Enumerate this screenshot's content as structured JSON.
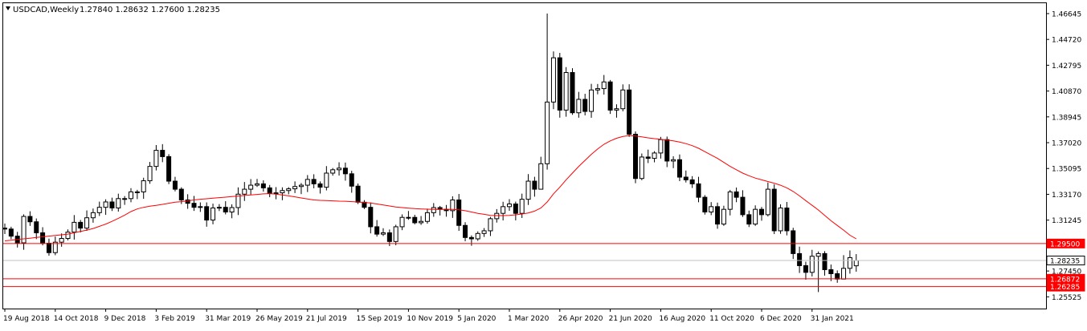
{
  "header": {
    "symbol": "USDCAD,Weekly",
    "ohlc": "1.27840 1.28632 1.27600 1.28235",
    "menu_icon": "triangle-down-icon"
  },
  "colors": {
    "background": "#ffffff",
    "frame": "#000000",
    "candle_up_fill": "#ffffff",
    "candle_down_fill": "#000000",
    "ma_line": "#ff0000",
    "level_line": "#ff0000",
    "current_line": "#c0c0c0",
    "current_badge": "#ffffff",
    "level_badge": "#ff0000"
  },
  "chart_data": {
    "type": "candlestick",
    "title": "USDCAD,Weekly",
    "ylim": [
      1.2465,
      1.4742
    ],
    "yticks": [
      "1.46645",
      "1.44720",
      "1.42795",
      "1.40870",
      "1.38945",
      "1.37020",
      "1.35095",
      "1.33170",
      "1.31245",
      "1.29500",
      "1.28235",
      "1.27450",
      "1.26872",
      "1.26285",
      "1.25525"
    ],
    "ytick_values": [
      1.46645,
      1.4472,
      1.42795,
      1.4087,
      1.38945,
      1.3702,
      1.35095,
      1.3317,
      1.31245,
      1.295,
      1.28235,
      1.2745,
      1.26872,
      1.26285,
      1.25525
    ],
    "xtick_labels": [
      "19 Aug 2018",
      "14 Oct 2018",
      "9 Dec 2018",
      "3 Feb 2019",
      "31 Mar 2019",
      "26 May 2019",
      "21 Jul 2019",
      "15 Sep 2019",
      "10 Nov 2019",
      "5 Jan 2020",
      "1 Mar 2020",
      "26 Apr 2020",
      "21 Jun 2020",
      "16 Aug 2020",
      "11 Oct 2020",
      "6 Dec 2020",
      "31 Jan 2021"
    ],
    "xtick_index": [
      0,
      8,
      16,
      24,
      32,
      40,
      48,
      56,
      64,
      72,
      80,
      88,
      96,
      104,
      112,
      120,
      128
    ],
    "candles_close": [
      1.3058,
      1.3005,
      1.2955,
      1.3152,
      1.3112,
      1.303,
      1.2952,
      1.2882,
      1.296,
      1.2988,
      1.3035,
      1.3108,
      1.3065,
      1.3142,
      1.318,
      1.322,
      1.326,
      1.3215,
      1.3285,
      1.3285,
      1.3335,
      1.3335,
      1.3418,
      1.3525,
      1.3645,
      1.3598,
      1.3415,
      1.3355,
      1.3275,
      1.325,
      1.322,
      1.3225,
      1.3125,
      1.3215,
      1.322,
      1.3185,
      1.3218,
      1.3318,
      1.3355,
      1.3385,
      1.3395,
      1.3365,
      1.3325,
      1.3328,
      1.3345,
      1.3358,
      1.3375,
      1.3385,
      1.3428,
      1.3395,
      1.337,
      1.3475,
      1.35,
      1.3512,
      1.347,
      1.3378,
      1.3258,
      1.322,
      1.3075,
      1.302,
      1.303,
      1.2965,
      1.3075,
      1.3145,
      1.3145,
      1.3105,
      1.3115,
      1.318,
      1.3218,
      1.3205,
      1.3195,
      1.3275,
      1.3085,
      1.2995,
      1.2985,
      1.3025,
      1.3045,
      1.3135,
      1.3175,
      1.3225,
      1.3245,
      1.3175,
      1.328,
      1.3415,
      1.3355,
      1.3545,
      1.4005,
      1.4335,
      1.3945,
      1.4225,
      1.3925,
      1.4025,
      1.3935,
      1.4095,
      1.4105,
      1.4155,
      1.3945,
      1.3955,
      1.4095,
      1.3765,
      1.3435,
      1.3595,
      1.3585,
      1.3625,
      1.3725,
      1.3565,
      1.3575,
      1.3445,
      1.3425,
      1.3395,
      1.3295,
      1.3185,
      1.3225,
      1.3095,
      1.3205,
      1.3335,
      1.3295,
      1.3165,
      1.3095,
      1.3205,
      1.3165,
      1.3355,
      1.3045,
      1.3215,
      1.3045,
      1.2875,
      1.2785,
      1.2735,
      1.2855,
      1.2875,
      1.2755,
      1.2725,
      1.2685,
      1.2765,
      1.2845,
      1.28235
    ],
    "candles_open": [
      1.3065,
      1.3058,
      1.3005,
      1.2955,
      1.3152,
      1.3112,
      1.303,
      1.2952,
      1.2882,
      1.296,
      1.2988,
      1.3035,
      1.3108,
      1.3065,
      1.3142,
      1.318,
      1.322,
      1.326,
      1.3215,
      1.3285,
      1.3285,
      1.3335,
      1.3335,
      1.3418,
      1.3525,
      1.3645,
      1.3598,
      1.3415,
      1.3355,
      1.3275,
      1.325,
      1.322,
      1.3225,
      1.3125,
      1.3215,
      1.322,
      1.3185,
      1.3218,
      1.3318,
      1.3355,
      1.3385,
      1.3395,
      1.3365,
      1.3325,
      1.3328,
      1.3345,
      1.3358,
      1.3375,
      1.3385,
      1.3428,
      1.3395,
      1.337,
      1.3475,
      1.35,
      1.3512,
      1.347,
      1.3378,
      1.3258,
      1.322,
      1.3075,
      1.302,
      1.303,
      1.2965,
      1.3075,
      1.3145,
      1.3145,
      1.3105,
      1.3115,
      1.318,
      1.3218,
      1.3205,
      1.3195,
      1.3275,
      1.3085,
      1.2995,
      1.2985,
      1.3025,
      1.3045,
      1.3135,
      1.3175,
      1.3225,
      1.3245,
      1.3175,
      1.328,
      1.3415,
      1.3355,
      1.3545,
      1.4005,
      1.4335,
      1.3945,
      1.4225,
      1.3925,
      1.4025,
      1.3935,
      1.4095,
      1.4105,
      1.4155,
      1.3945,
      1.3955,
      1.4095,
      1.3765,
      1.3435,
      1.3595,
      1.3585,
      1.3625,
      1.3725,
      1.3565,
      1.3575,
      1.3445,
      1.3425,
      1.3395,
      1.3295,
      1.3185,
      1.3225,
      1.3095,
      1.3205,
      1.3335,
      1.3295,
      1.3165,
      1.3095,
      1.3205,
      1.3165,
      1.3355,
      1.3045,
      1.3215,
      1.3045,
      1.2875,
      1.2785,
      1.2735,
      1.2855,
      1.2875,
      1.2755,
      1.2725,
      1.2685,
      1.2765,
      1.2784
    ],
    "ma_values": [
      1.297,
      1.2975,
      1.298,
      1.2985,
      1.299,
      1.2995,
      1.3,
      1.3005,
      1.301,
      1.3015,
      1.302,
      1.303,
      1.304,
      1.305,
      1.3062,
      1.3078,
      1.3095,
      1.3115,
      1.3138,
      1.3162,
      1.3188,
      1.3208,
      1.322,
      1.3228,
      1.3235,
      1.3242,
      1.325,
      1.3258,
      1.3262,
      1.3268,
      1.3275,
      1.328,
      1.3284,
      1.3288,
      1.3292,
      1.3296,
      1.33,
      1.3304,
      1.3308,
      1.3312,
      1.3316,
      1.332,
      1.3322,
      1.3318,
      1.3312,
      1.3305,
      1.3298,
      1.329,
      1.3282,
      1.3275,
      1.3272,
      1.327,
      1.3268,
      1.3266,
      1.3265,
      1.3262,
      1.326,
      1.3256,
      1.3252,
      1.3245,
      1.3238,
      1.323,
      1.3222,
      1.3218,
      1.3214,
      1.321,
      1.3208,
      1.3206,
      1.3205,
      1.3204,
      1.3204,
      1.3204,
      1.3202,
      1.3195,
      1.3185,
      1.3175,
      1.3168,
      1.316,
      1.3158,
      1.3158,
      1.316,
      1.3164,
      1.317,
      1.3178,
      1.3192,
      1.3215,
      1.326,
      1.332,
      1.337,
      1.3425,
      1.3475,
      1.3525,
      1.357,
      1.3615,
      1.3655,
      1.369,
      1.3715,
      1.3735,
      1.3748,
      1.3755,
      1.3752,
      1.3745,
      1.3738,
      1.3732,
      1.3728,
      1.3722,
      1.3715,
      1.3706,
      1.3695,
      1.368,
      1.366,
      1.3635,
      1.361,
      1.3585,
      1.3555,
      1.3525,
      1.35,
      1.3475,
      1.3455,
      1.3438,
      1.3425,
      1.3412,
      1.34,
      1.3385,
      1.3365,
      1.3338,
      1.3305,
      1.327,
      1.3235,
      1.32,
      1.316,
      1.312,
      1.3085,
      1.305,
      1.3012,
      1.2985
    ],
    "levels": [
      {
        "label": "1.29500",
        "value": 1.295
      },
      {
        "label": "1.26872",
        "value": 1.26872
      },
      {
        "label": "1.26285",
        "value": 1.26285
      }
    ],
    "current_price": {
      "label": "1.28235",
      "value": 1.28235
    },
    "grid": false
  }
}
